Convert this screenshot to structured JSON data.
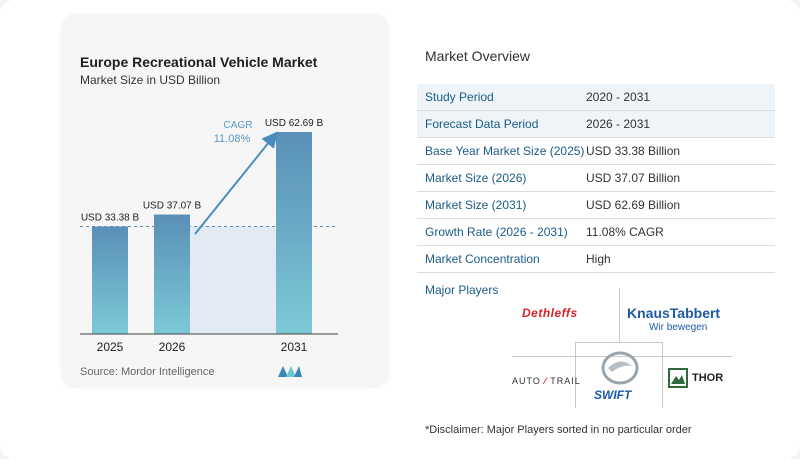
{
  "chart_data": {
    "type": "bar",
    "title": "Europe Recreational Vehicle Market",
    "subtitle": "Market Size in USD Billion",
    "categories": [
      "2025",
      "2026",
      "2031"
    ],
    "values": [
      33.38,
      37.07,
      62.69
    ],
    "data_labels": [
      "USD 33.38 B",
      "USD 37.07 B",
      "USD 62.69 B"
    ],
    "ylim": [
      0,
      65
    ],
    "cagr_label": "CAGR",
    "cagr_value": "11.08%",
    "bar_color": "#5b93b8",
    "bar_color_light": "#7ec7d6",
    "arrow_color": "#4a8dbd"
  },
  "source": "Source:  Mordor Intelligence",
  "overview": {
    "title": "Market Overview",
    "rows": [
      {
        "label": "Study Period",
        "value": "2020 - 2031"
      },
      {
        "label": "Forecast Data Period",
        "value": "2026 - 2031"
      },
      {
        "label": "Base Year Market Size (2025)",
        "value": "USD 33.38 Billion"
      },
      {
        "label": "Market Size (2026)",
        "value": "USD 37.07 Billion"
      },
      {
        "label": "Market Size (2031)",
        "value": "USD 62.69 Billion"
      },
      {
        "label": "Growth Rate (2026 - 2031)",
        "value": "11.08% CAGR"
      },
      {
        "label": "Market Concentration",
        "value": "High"
      }
    ]
  },
  "players": {
    "title": "Major Players",
    "dethleffs": "Dethleffs",
    "knaus_1": "KnausTabbert",
    "knaus_2": "Wir bewegen",
    "autotrail_1": "AUTO",
    "autotrail_2": "TRAIL",
    "swift": "SWIFT",
    "thor": "THOR"
  },
  "disclaimer": "*Disclaimer: Major Players sorted in no particular order"
}
